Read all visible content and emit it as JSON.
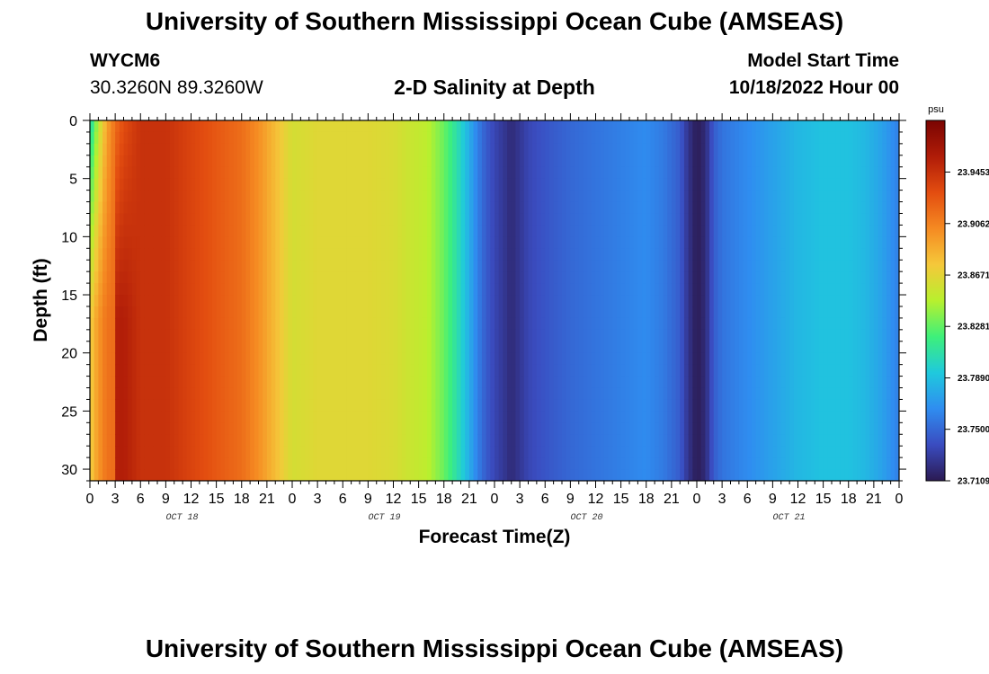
{
  "page": {
    "title": "University of Southern Mississippi Ocean Cube (AMSEAS)",
    "title_repeat": "University of Southern Mississippi Ocean Cube (AMSEAS)",
    "station_id": "WYCM6",
    "station_location": "30.3260N  89.3260W",
    "model_start_label": "Model Start Time",
    "model_start_value": "10/18/2022 Hour 00"
  },
  "chart_data": {
    "type": "heatmap",
    "title": "2-D Salinity at Depth",
    "xlabel": "Forecast Time(Z)",
    "ylabel": "Depth (ft)",
    "unit": "psu",
    "xlim": [
      0,
      96
    ],
    "ylim": [
      0,
      31
    ],
    "y_inverted": true,
    "x_tick_step_hours": 3,
    "x_tick_labels": [
      "0",
      "3",
      "6",
      "9",
      "12",
      "15",
      "18",
      "21",
      "0",
      "3",
      "6",
      "9",
      "12",
      "15",
      "18",
      "21",
      "0",
      "3",
      "6",
      "9",
      "12",
      "15",
      "18",
      "21",
      "0",
      "3",
      "6",
      "9",
      "12",
      "15",
      "18",
      "21",
      "0"
    ],
    "day_labels": [
      {
        "label": "OCT 18",
        "center_hour": 12
      },
      {
        "label": "OCT 19",
        "center_hour": 36
      },
      {
        "label": "OCT 20",
        "center_hour": 60
      },
      {
        "label": "OCT 21",
        "center_hour": 84
      }
    ],
    "y_ticks": [
      0,
      5,
      10,
      15,
      20,
      25,
      30
    ],
    "y_tick_labels": [
      "0",
      "5",
      "10",
      "15",
      "20",
      "25",
      "30"
    ],
    "colorbar": {
      "min": 23.7109,
      "max": 23.9845,
      "ticks": [
        23.7109,
        23.75,
        23.789,
        23.8281,
        23.8671,
        23.9062,
        23.9453
      ],
      "tick_labels": [
        "23.7109",
        "23.7500",
        "23.7890",
        "23.8281",
        "23.8671",
        "23.9062",
        "23.9453"
      ],
      "colors": [
        "#2b1a52",
        "#3a4cc0",
        "#2f8df0",
        "#1fc9dd",
        "#3ef07a",
        "#b8f02e",
        "#f5c83a",
        "#f58a22",
        "#e34d10",
        "#b01c08",
        "#7a0402"
      ]
    },
    "surface_profile": [
      {
        "hour": 0,
        "value": 23.8
      },
      {
        "hour": 1,
        "value": 23.85
      },
      {
        "hour": 2,
        "value": 23.89
      },
      {
        "hour": 3,
        "value": 23.915
      },
      {
        "hour": 4,
        "value": 23.93
      },
      {
        "hour": 6,
        "value": 23.945
      },
      {
        "hour": 9,
        "value": 23.945
      },
      {
        "hour": 12,
        "value": 23.935
      },
      {
        "hour": 15,
        "value": 23.925
      },
      {
        "hour": 18,
        "value": 23.915
      },
      {
        "hour": 20,
        "value": 23.9
      },
      {
        "hour": 22,
        "value": 23.88
      },
      {
        "hour": 23,
        "value": 23.87
      },
      {
        "hour": 24,
        "value": 23.86
      },
      {
        "hour": 27,
        "value": 23.865
      },
      {
        "hour": 30,
        "value": 23.865
      },
      {
        "hour": 33,
        "value": 23.865
      },
      {
        "hour": 36,
        "value": 23.862
      },
      {
        "hour": 38,
        "value": 23.855
      },
      {
        "hour": 40,
        "value": 23.85
      },
      {
        "hour": 42,
        "value": 23.83
      },
      {
        "hour": 43,
        "value": 23.815
      },
      {
        "hour": 44,
        "value": 23.8
      },
      {
        "hour": 45,
        "value": 23.78
      },
      {
        "hour": 46,
        "value": 23.76
      },
      {
        "hour": 47,
        "value": 23.745
      },
      {
        "hour": 48,
        "value": 23.735
      },
      {
        "hour": 49,
        "value": 23.728
      },
      {
        "hour": 50,
        "value": 23.72
      },
      {
        "hour": 51,
        "value": 23.727
      },
      {
        "hour": 52,
        "value": 23.735
      },
      {
        "hour": 54,
        "value": 23.742
      },
      {
        "hour": 57,
        "value": 23.75
      },
      {
        "hour": 60,
        "value": 23.755
      },
      {
        "hour": 63,
        "value": 23.76
      },
      {
        "hour": 66,
        "value": 23.765
      },
      {
        "hour": 68,
        "value": 23.758
      },
      {
        "hour": 70,
        "value": 23.745
      },
      {
        "hour": 71,
        "value": 23.725
      },
      {
        "hour": 72,
        "value": 23.712
      },
      {
        "hour": 73,
        "value": 23.72
      },
      {
        "hour": 74,
        "value": 23.745
      },
      {
        "hour": 75,
        "value": 23.755
      },
      {
        "hour": 78,
        "value": 23.765
      },
      {
        "hour": 81,
        "value": 23.775
      },
      {
        "hour": 84,
        "value": 23.785
      },
      {
        "hour": 87,
        "value": 23.79
      },
      {
        "hour": 90,
        "value": 23.79
      },
      {
        "hour": 92,
        "value": 23.785
      },
      {
        "hour": 94,
        "value": 23.775
      },
      {
        "hour": 96,
        "value": 23.76
      }
    ],
    "depth_adjustments": [
      {
        "hour_from": 0,
        "hour_to": 3,
        "delta_at_bottom": 0.07
      },
      {
        "hour_from": 3,
        "hour_to": 6,
        "delta_at_bottom": 0.04
      }
    ]
  }
}
